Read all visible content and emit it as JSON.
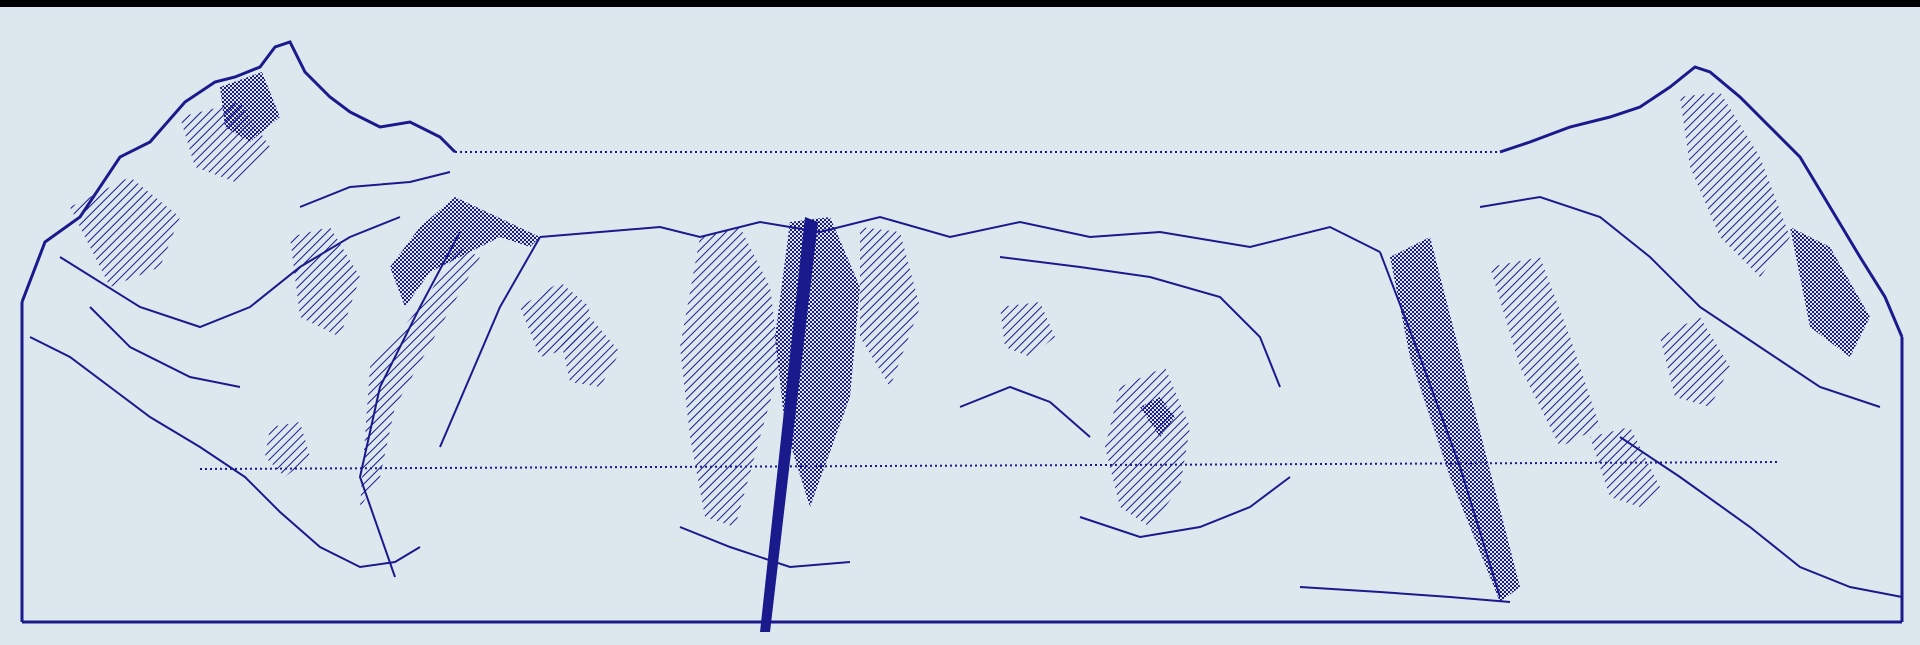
{
  "figure": {
    "subject": "",
    "colors": {
      "background_frame": "#000000",
      "paper": "#dde8ee",
      "ink": "#1a1a8c"
    }
  }
}
